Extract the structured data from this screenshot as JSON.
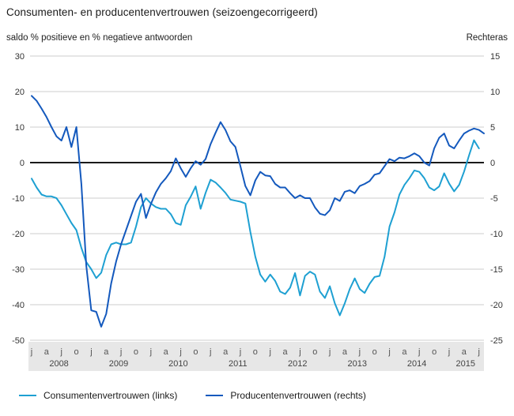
{
  "header": {
    "title": "Consumenten- en producentenvertrouwen (seizoengecorrigeerd)",
    "subtitle_left": "saldo % positieve en % negatieve antwoorden",
    "subtitle_right": "Rechteras"
  },
  "legend": [
    {
      "label": "Consumentenvertrouwen (links)",
      "color": "#1ea0d2"
    },
    {
      "label": "Producentenvertrouwen (rechts)",
      "color": "#1459bd"
    }
  ],
  "colors": {
    "gridline": "#cccccc",
    "zero_line": "#1a1a1a",
    "axis_band": "#e7e7e7",
    "tick_text": "#333333",
    "month_text": "#555555",
    "year_text": "#444444"
  },
  "chart_data": {
    "type": "line",
    "title": "Consumenten- en producentenvertrouwen (seizoengecorrigeerd)",
    "x_start": "2008-01",
    "frequency": "monthly",
    "x_tick_month_letters": [
      "j",
      "a",
      "j",
      "o"
    ],
    "years": [
      "2008",
      "2009",
      "2010",
      "2011",
      "2012",
      "2013",
      "2014",
      "2015"
    ],
    "grid": "horizontal-only",
    "legend_position": "bottom",
    "y_axis_left": {
      "label": "saldo % positieve en % negatieve antwoorden",
      "ticks": [
        30,
        20,
        10,
        0,
        -10,
        -20,
        -30,
        -40,
        -50
      ],
      "range": [
        -50,
        30
      ]
    },
    "y_axis_right": {
      "label": "Rechteras",
      "ticks": [
        15,
        10,
        5,
        0,
        -5,
        -10,
        -15,
        -20,
        -25
      ],
      "range": [
        -25,
        15
      ]
    },
    "series": [
      {
        "name": "Consumentenvertrouwen (links)",
        "axis": "left",
        "color": "#1ea0d2",
        "values": [
          -4.5,
          -7,
          -9,
          -9.5,
          -9.5,
          -10,
          -12,
          -14.5,
          -17,
          -19,
          -24,
          -28,
          -30,
          -32.5,
          -31,
          -26,
          -23,
          -22.5,
          -23,
          -23,
          -22.5,
          -18,
          -12.5,
          -10,
          -11.5,
          -12.5,
          -13,
          -13,
          -14.5,
          -17,
          -17.5,
          -12,
          -9.6,
          -6.7,
          -13,
          -8.5,
          -4.8,
          -5.6,
          -7,
          -8.5,
          -10.4,
          -10.7,
          -11,
          -11.5,
          -19.5,
          -26.5,
          -31.5,
          -33.5,
          -31.5,
          -33.3,
          -36.3,
          -37,
          -35.2,
          -31.1,
          -37.4,
          -31.9,
          -30.7,
          -31.5,
          -36.3,
          -38.1,
          -34.8,
          -39.6,
          -43,
          -39.6,
          -35.6,
          -32.6,
          -35.6,
          -36.7,
          -34.1,
          -32.2,
          -31.9,
          -26.5,
          -18,
          -14,
          -9,
          -6.3,
          -4.4,
          -2.2,
          -2.6,
          -4.4,
          -7,
          -7.8,
          -6.7,
          -3,
          -5.9,
          -8.1,
          -6.3,
          -2.5,
          2,
          6.3,
          4
        ]
      },
      {
        "name": "Producentenvertrouwen (rechts)",
        "axis": "right",
        "color": "#1459bd",
        "values": [
          9.4,
          8.7,
          7.6,
          6.4,
          5,
          3.7,
          3.1,
          5,
          2.2,
          5,
          -3,
          -14.5,
          -20.8,
          -21,
          -23.1,
          -21.3,
          -17,
          -13.9,
          -11.5,
          -9.5,
          -7.5,
          -5.5,
          -4.4,
          -7.8,
          -5.8,
          -4.2,
          -3,
          -2.2,
          -1.2,
          0.6,
          -0.8,
          -2,
          -0.8,
          0.2,
          -0.3,
          0.5,
          2.6,
          4.2,
          5.7,
          4.6,
          3,
          2.2,
          -0.5,
          -3.3,
          -4.6,
          -2.5,
          -1.3,
          -1.8,
          -1.9,
          -3,
          -3.5,
          -3.5,
          -4.3,
          -5,
          -4.6,
          -5,
          -5,
          -6.3,
          -7.2,
          -7.4,
          -6.7,
          -5,
          -5.4,
          -4.1,
          -3.9,
          -4.3,
          -3.3,
          -3,
          -2.6,
          -1.7,
          -1.5,
          -0.5,
          0.5,
          0.2,
          0.7,
          0.6,
          0.9,
          1.3,
          0.9,
          0,
          -0.4,
          2,
          3.5,
          4.1,
          2.4,
          2,
          3.1,
          4.1,
          4.5,
          4.8,
          4.6,
          4.1
        ]
      }
    ]
  }
}
